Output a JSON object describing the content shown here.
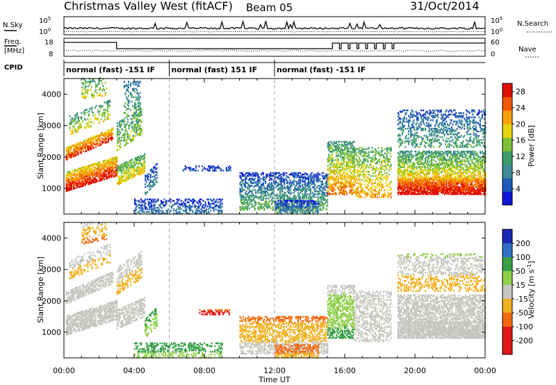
{
  "header": {
    "station": "Christmas Valley West (fitACF)",
    "beam": "Beam 05",
    "date": "31/Oct/2014"
  },
  "top_panels": {
    "nsky_label": "N.Sky",
    "nsky_tick_hi": "10^5",
    "nsky_tick_lo": "10^0",
    "nsearch_label": "N.Search",
    "freq_label_1": "Freq.",
    "freq_label_2": "[MHz]",
    "freq_ticks": [
      "18",
      "8"
    ],
    "nave_ticks": [
      "60",
      "0"
    ],
    "nave_label": "Nave",
    "cpid_label": "CPID",
    "cpid_segments": [
      {
        "start_h": 0,
        "end_h": 6,
        "label": "normal (fast) -151 IF"
      },
      {
        "start_h": 6,
        "end_h": 12,
        "label": "normal (fast) 151 IF"
      },
      {
        "start_h": 12,
        "end_h": 24,
        "label": "normal (fast) -151 IF"
      }
    ]
  },
  "chart_data": [
    {
      "type": "heatmap",
      "name": "power",
      "ylabel": "Slant Range [km]",
      "ylim": [
        180,
        4500
      ],
      "yticks": [
        1000,
        2000,
        3000,
        4000
      ],
      "xlim": [
        0,
        24
      ],
      "xticks": [
        "00:00",
        "04:00",
        "08:00",
        "12:00",
        "16:00",
        "20:00",
        "00:00"
      ],
      "colorbar": {
        "label": "Power [dB]",
        "ticks": [
          "4",
          "8",
          "12",
          "16",
          "20",
          "24",
          "28"
        ],
        "range": [
          0,
          30
        ]
      },
      "regions": [
        {
          "t0": 0.1,
          "t1": 3.0,
          "r0": 900,
          "r1": 1500,
          "slope": 500,
          "v0": 30,
          "v1": 18,
          "density": 0.75
        },
        {
          "t0": 0.1,
          "t1": 2.8,
          "r0": 1900,
          "r1": 2300,
          "slope": 650,
          "v0": 28,
          "v1": 18,
          "density": 0.6
        },
        {
          "t0": 0.3,
          "t1": 2.6,
          "r0": 2700,
          "r1": 3300,
          "slope": 500,
          "v0": 18,
          "v1": 10,
          "density": 0.3
        },
        {
          "t0": 1.0,
          "t1": 2.4,
          "r0": 3800,
          "r1": 4500,
          "slope": 150,
          "v0": 18,
          "v1": 10,
          "density": 0.25
        },
        {
          "t0": 3.0,
          "t1": 4.6,
          "r0": 1100,
          "r1": 1700,
          "slope": 400,
          "v0": 20,
          "v1": 12,
          "density": 0.6
        },
        {
          "t0": 3.0,
          "t1": 4.4,
          "r0": 2200,
          "r1": 3100,
          "slope": 500,
          "v0": 16,
          "v1": 10,
          "density": 0.35
        },
        {
          "t0": 3.4,
          "t1": 4.3,
          "r0": 3300,
          "r1": 4400,
          "slope": 0,
          "v0": 14,
          "v1": 6,
          "density": 0.25
        },
        {
          "t0": 4.6,
          "t1": 5.3,
          "r0": 800,
          "r1": 1400,
          "slope": 400,
          "v0": 10,
          "v1": 4,
          "density": 0.4
        },
        {
          "t0": 4.0,
          "t1": 9.0,
          "r0": 180,
          "r1": 650,
          "slope": 0,
          "v0": 8,
          "v1": 2,
          "density": 0.4
        },
        {
          "t0": 6.7,
          "t1": 9.5,
          "r0": 1550,
          "r1": 1700,
          "slope": 0,
          "v0": 6,
          "v1": 2,
          "density": 0.35
        },
        {
          "t0": 10.0,
          "t1": 15.0,
          "r0": 300,
          "r1": 1500,
          "slope": 0,
          "v0": 14,
          "v1": 3,
          "density": 0.45
        },
        {
          "t0": 12.0,
          "t1": 14.5,
          "r0": 180,
          "r1": 600,
          "slope": 0,
          "v0": 10,
          "v1": 2,
          "density": 0.5
        },
        {
          "t0": 15.0,
          "t1": 16.5,
          "r0": 800,
          "r1": 2500,
          "slope": 0,
          "v0": 24,
          "v1": 10,
          "density": 0.5
        },
        {
          "t0": 16.5,
          "t1": 18.6,
          "r0": 700,
          "r1": 2300,
          "slope": 0,
          "v0": 22,
          "v1": 12,
          "density": 0.35
        },
        {
          "t0": 19.0,
          "t1": 24.0,
          "r0": 800,
          "r1": 1300,
          "slope": 0,
          "v0": 30,
          "v1": 22,
          "density": 0.8
        },
        {
          "t0": 19.0,
          "t1": 24.0,
          "r0": 1300,
          "r1": 2200,
          "slope": 0,
          "v0": 20,
          "v1": 10,
          "density": 0.55
        },
        {
          "t0": 19.0,
          "t1": 24.0,
          "r0": 2300,
          "r1": 3500,
          "slope": 0,
          "v0": 12,
          "v1": 4,
          "density": 0.3
        }
      ]
    },
    {
      "type": "heatmap",
      "name": "velocity",
      "ylabel": "Slant Range [km]",
      "ylim": [
        180,
        4500
      ],
      "yticks": [
        1000,
        2000,
        3000,
        4000
      ],
      "xlim": [
        0,
        24
      ],
      "xticks": [
        "00:00",
        "04:00",
        "08:00",
        "12:00",
        "16:00",
        "20:00",
        "00:00"
      ],
      "xlabel": "Time UT",
      "colorbar": {
        "label": "Velocity [m s^-1]",
        "ticks": [
          "200",
          "100",
          "50",
          "15",
          "-15",
          "-50",
          "-100",
          "-200"
        ],
        "range": [
          -250,
          250
        ]
      },
      "regions": [
        {
          "t0": 0.1,
          "t1": 3.0,
          "r0": 900,
          "r1": 1500,
          "slope": 500,
          "v0": 5,
          "v1": -5,
          "density": 0.7
        },
        {
          "t0": 0.1,
          "t1": 2.8,
          "r0": 1900,
          "r1": 2300,
          "slope": 650,
          "v0": 5,
          "v1": -5,
          "density": 0.55
        },
        {
          "t0": 0.3,
          "t1": 2.6,
          "r0": 2700,
          "r1": 3300,
          "slope": 500,
          "v0": -40,
          "v1": 10,
          "density": 0.3
        },
        {
          "t0": 1.0,
          "t1": 2.4,
          "r0": 3800,
          "r1": 4500,
          "slope": 150,
          "v0": -60,
          "v1": 0,
          "density": 0.25
        },
        {
          "t0": 3.0,
          "t1": 4.6,
          "r0": 1100,
          "r1": 1700,
          "slope": 400,
          "v0": 5,
          "v1": -5,
          "density": 0.55
        },
        {
          "t0": 3.0,
          "t1": 4.4,
          "r0": 2200,
          "r1": 3100,
          "slope": 500,
          "v0": -30,
          "v1": 5,
          "density": 0.35
        },
        {
          "t0": 4.6,
          "t1": 5.3,
          "r0": 800,
          "r1": 1400,
          "slope": 400,
          "v0": 30,
          "v1": 60,
          "density": 0.35
        },
        {
          "t0": 4.0,
          "t1": 9.0,
          "r0": 180,
          "r1": 650,
          "slope": 0,
          "v0": 40,
          "v1": 70,
          "density": 0.35
        },
        {
          "t0": 7.7,
          "t1": 9.5,
          "r0": 1550,
          "r1": 1700,
          "slope": 0,
          "v0": -160,
          "v1": -90,
          "density": 0.5
        },
        {
          "t0": 10.0,
          "t1": 15.0,
          "r0": 300,
          "r1": 1500,
          "slope": 0,
          "v0": 5,
          "v1": -60,
          "density": 0.45
        },
        {
          "t0": 12.0,
          "t1": 14.5,
          "r0": 180,
          "r1": 600,
          "slope": 0,
          "v0": -40,
          "v1": -70,
          "density": 0.5
        },
        {
          "t0": 15.0,
          "t1": 16.5,
          "r0": 800,
          "r1": 2500,
          "slope": 0,
          "v0": 60,
          "v1": 5,
          "density": 0.5
        },
        {
          "t0": 16.5,
          "t1": 18.6,
          "r0": 700,
          "r1": 2300,
          "slope": 0,
          "v0": 5,
          "v1": -5,
          "density": 0.35
        },
        {
          "t0": 19.0,
          "t1": 24.0,
          "r0": 800,
          "r1": 1300,
          "slope": 0,
          "v0": 5,
          "v1": -5,
          "density": 0.8
        },
        {
          "t0": 19.0,
          "t1": 24.0,
          "r0": 1300,
          "r1": 2200,
          "slope": 0,
          "v0": 5,
          "v1": -5,
          "density": 0.55
        },
        {
          "t0": 19.0,
          "t1": 24.0,
          "r0": 2300,
          "r1": 3500,
          "slope": 0,
          "v0": -40,
          "v1": 20,
          "density": 0.3
        }
      ]
    }
  ]
}
